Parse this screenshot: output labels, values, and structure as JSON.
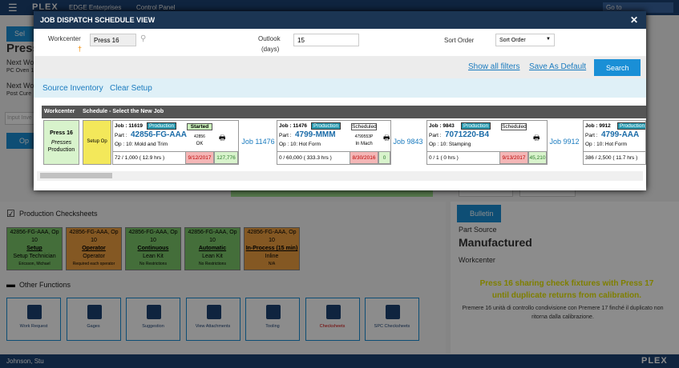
{
  "topbar": {
    "logo": "PLEX",
    "company": "EDGE Enterprises",
    "panel": "Control Panel",
    "search": "Go to"
  },
  "background": {
    "select_button": "Sel",
    "workcenter": "Press",
    "next1": "Next Wo",
    "next1_sub": "PC Oven 1",
    "next2": "Next Wo",
    "next2_sub": "Post Cure",
    "input_placeholder": "Input Inve",
    "op_button": "Op",
    "checksheets_title": "Production Checksheets",
    "checksheets": [
      {
        "color": "#7cc86a",
        "lines": [
          "42856-FG-AAA, Op",
          "10",
          "Setup",
          "Setup Technician",
          "Ericsson, Michael"
        ]
      },
      {
        "color": "#f0a040",
        "lines": [
          "42856-FG-AAA, Op",
          "10",
          "Operator",
          "Operator",
          "Required each operator"
        ]
      },
      {
        "color": "#7cc86a",
        "lines": [
          "42856-FG-AAA, Op",
          "10",
          "Continuous",
          "Lean Kit",
          "No Restrictions"
        ]
      },
      {
        "color": "#7cc86a",
        "lines": [
          "42856-FG-AAA, Op",
          "10",
          "Automatic",
          "Lean Kit",
          "No Restrictions"
        ]
      },
      {
        "color": "#f0a040",
        "lines": [
          "42856-FG-AAA, Op",
          "10",
          "In-Process (15 min)",
          "Inline",
          "N/A"
        ]
      }
    ],
    "other_title": "Other Functions",
    "functions": [
      "Work Request",
      "Gages",
      "Suggestion",
      "View Attachments",
      "Tooling",
      "Checksheets",
      "SPC Checksheets"
    ],
    "bulletin": "Bulletin",
    "part_source_label": "Part Source",
    "part_source": "Manufactured",
    "workcenter_label": "Workcenter",
    "notice": "Press 16 sharing check fixtures with Press 17 until duplicate returns from calibration.",
    "notice_it": "Premere 16 unità di controllo condivisione con Premere 17 finché il duplicato non ritorna dalla calibrazione.",
    "user": "Johnson, Stu",
    "footer_logo": "PLEX"
  },
  "modal": {
    "title": "JOB DISPATCH SCHEDULE VIEW",
    "close": "✕",
    "workcenter_label": "Workcenter",
    "workcenter_value": "Press 16",
    "required": "†",
    "outlook_label": "Outlook",
    "outlook_unit": "(days)",
    "outlook_value": "15",
    "sort_label": "Sort Order",
    "sort_value": "Sort Order",
    "show_filters": "Show all filters",
    "save_default": "Save As Default",
    "search": "Search",
    "source_inventory": "Source Inventory",
    "clear_setup": "Clear Setup",
    "table": {
      "header_workcenter": "Workcenter",
      "header_schedule": "Schedule - Select the New Job",
      "wc_name": "Press 16",
      "wc_type": "Presses",
      "wc_group": "Production",
      "setup": "Setup Op",
      "jobs": [
        {
          "link": null,
          "job": "Job : 11619",
          "status": "Production",
          "part_label": "Part :",
          "part": "42856-FG-AAA",
          "op": "Op : 10: Mold and Trim",
          "progress": "72 / 1,000 ( 12.9 hrs )",
          "state": "Started",
          "code": "42856",
          "code2": "OK",
          "date": "9/12/2017",
          "qty": "127,776"
        },
        {
          "link": "Job 11476",
          "job": "Job : 11476",
          "status": "Production",
          "part_label": "Part :",
          "part": "4799-MMM",
          "op": "Op : 10: Hot Form",
          "progress": "0 / 60,000 ( 333.3 hrs )",
          "state": "Scheduled",
          "code": "4799553P",
          "code2": "In Mach",
          "date": "8/30/2016",
          "qty": "0"
        },
        {
          "link": "Job 9843",
          "job": "Job : 9843",
          "status": "Production",
          "part_label": "Part :",
          "part": "7071220-B4",
          "op": "Op : 10: Stamping",
          "progress": "0 / 1 ( 0 hrs )",
          "state": "Scheduled",
          "code": null,
          "code2": null,
          "date": "9/13/2017",
          "qty": "45,210"
        },
        {
          "link": "Job 9912",
          "job": "Job : 9912",
          "status": "Production",
          "part_label": "Part :",
          "part": "4799-AAA",
          "op": "Op : 10: Hot Form",
          "progress": "386 / 2,500 ( 11.7 hrs )"
        }
      ]
    }
  }
}
